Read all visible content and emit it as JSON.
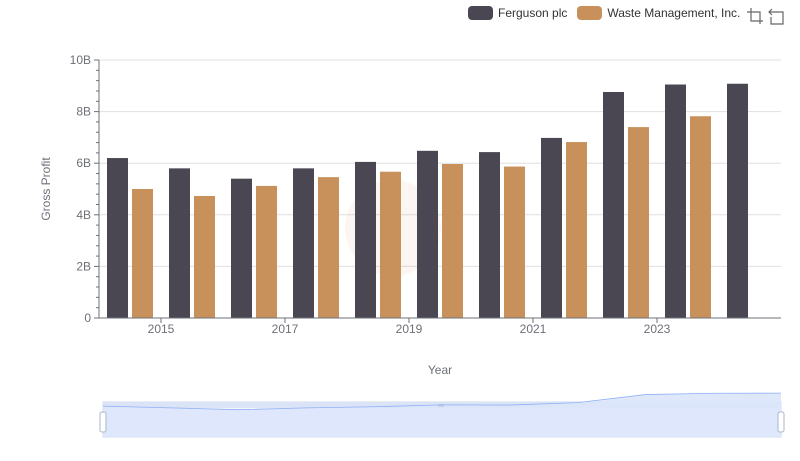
{
  "colors": {
    "ferguson": "#4a4752",
    "waste": "#c8915c",
    "grid": "#e0e0e0",
    "axis": "#6e7079",
    "zoom_fill": "#dbe5fb",
    "zoom_line": "#8fb0f7"
  },
  "legend": {
    "items": [
      {
        "label": "Ferguson plc",
        "color": "#4a4752"
      },
      {
        "label": "Waste Management, Inc.",
        "color": "#c8915c"
      }
    ]
  },
  "toolbox": {
    "icons": [
      "zoom-icon",
      "zoom-reset-icon"
    ]
  },
  "chart_data": {
    "type": "bar",
    "xlabel": "Year",
    "ylabel": "Gross Profit",
    "ylim": [
      0,
      10000000000
    ],
    "yticks": [
      {
        "value": 0,
        "label": "0"
      },
      {
        "value": 2000000000,
        "label": "2B"
      },
      {
        "value": 4000000000,
        "label": "4B"
      },
      {
        "value": 6000000000,
        "label": "6B"
      },
      {
        "value": 8000000000,
        "label": "8B"
      },
      {
        "value": 10000000000,
        "label": "10B"
      }
    ],
    "categories": [
      "2014",
      "2015",
      "2016",
      "2017",
      "2018",
      "2019",
      "2020",
      "2021",
      "2022",
      "2023",
      "2024"
    ],
    "xtick_labels": [
      "2015",
      "2017",
      "2019",
      "2021",
      "2023"
    ],
    "grid": true,
    "legend_position": "top-right",
    "series": [
      {
        "name": "Ferguson plc",
        "values": [
          6200000000,
          5800000000,
          5400000000,
          5800000000,
          6050000000,
          6480000000,
          6430000000,
          6980000000,
          8760000000,
          9050000000,
          9080000000
        ]
      },
      {
        "name": "Waste Management, Inc.",
        "values": [
          5000000000,
          4730000000,
          5120000000,
          5460000000,
          5670000000,
          5970000000,
          5870000000,
          6820000000,
          7400000000,
          7820000000,
          null
        ]
      }
    ]
  }
}
